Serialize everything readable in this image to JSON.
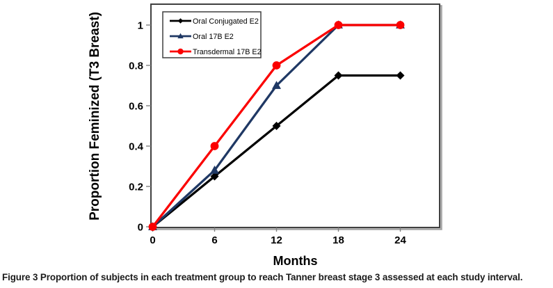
{
  "chart_data": {
    "type": "line",
    "title": "",
    "xlabel": "Months",
    "ylabel": "Proportion Feminized (T3 Breast)",
    "x": [
      0,
      6,
      12,
      18,
      24
    ],
    "xticks": [
      0,
      6,
      12,
      18,
      24
    ],
    "xtick_labels": [
      "0",
      "6",
      "12",
      "18",
      "24"
    ],
    "yticks": [
      0,
      0.2,
      0.4,
      0.6,
      0.8,
      1
    ],
    "ytick_labels": [
      "0",
      "0.2",
      "0.4",
      "0.6",
      "0.8",
      "1"
    ],
    "xlim": [
      0,
      27.8
    ],
    "ylim": [
      0,
      1.1
    ],
    "grid": false,
    "legend_position": "top-left-inside",
    "series": [
      {
        "name": "Oral Conjugated E2",
        "color": "#000000",
        "marker": "diamond",
        "values": [
          0,
          0.25,
          0.5,
          0.75,
          0.75
        ]
      },
      {
        "name": "Oral 17B E2",
        "color": "#1F3864",
        "marker": "triangle",
        "values": [
          0,
          0.28,
          0.7,
          1,
          1
        ]
      },
      {
        "name": "Transdermal 17B E2",
        "color": "#FB0000",
        "marker": "circle",
        "values": [
          0,
          0.4,
          0.8,
          1,
          1
        ]
      }
    ],
    "colors": {
      "plot_border": "#404040",
      "plot_shadow": "#a3a3a3",
      "tick": "#808080",
      "text": "#000000"
    }
  },
  "caption": {
    "label": "Figure 3",
    "text": "Proportion of subjects in each treatment group to reach Tanner breast stage 3 assessed at each study interval."
  }
}
